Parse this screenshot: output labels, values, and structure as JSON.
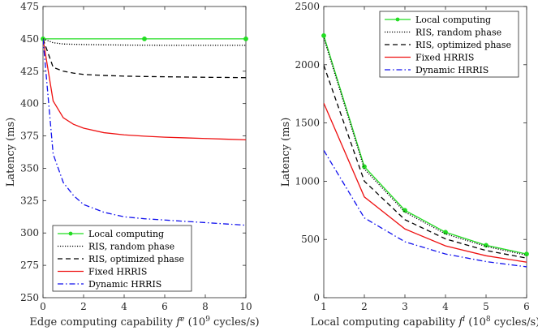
{
  "chart_data": [
    {
      "type": "line",
      "xlabel": "Edge computing capability f^e (10^9 cycles/s)",
      "xlabel_parts": {
        "prefix": "Edge computing capability ",
        "var": "f",
        "sup": "e",
        "mid": " (10",
        "exp": "9",
        "suffix": " cycles/s)"
      },
      "ylabel": "Latency (ms)",
      "xlim": [
        0,
        10
      ],
      "ylim": [
        250,
        475
      ],
      "xticks": [
        "0",
        "2",
        "4",
        "6",
        "8",
        "10"
      ],
      "yticks": [
        "250",
        "275",
        "300",
        "325",
        "350",
        "375",
        "400",
        "425",
        "450",
        "475"
      ],
      "legend_position": "bottom-left",
      "series": [
        {
          "name": "Local computing",
          "color": "#22dd22",
          "style": "solid-marker",
          "x": [
            0,
            5,
            10
          ],
          "y": [
            450,
            450,
            450
          ]
        },
        {
          "name": "RIS, random phase",
          "color": "#000000",
          "style": "dotted",
          "x": [
            0,
            0.5,
            1,
            1.5,
            2,
            3,
            4,
            5,
            6,
            7,
            8,
            9,
            10
          ],
          "y": [
            450,
            447,
            446,
            445.8,
            445.6,
            445.4,
            445.2,
            445.1,
            445,
            445,
            445,
            445,
            445
          ]
        },
        {
          "name": "RIS, optimized phase",
          "color": "#000000",
          "style": "dashed",
          "x": [
            0,
            0.5,
            1,
            1.5,
            2,
            3,
            4,
            5,
            6,
            7,
            8,
            9,
            10
          ],
          "y": [
            450,
            428,
            425,
            423.5,
            422.5,
            421.7,
            421.2,
            420.9,
            420.7,
            420.5,
            420.3,
            420.2,
            420
          ]
        },
        {
          "name": "Fixed HRRIS",
          "color": "#ee1111",
          "style": "solid",
          "x": [
            0,
            0.5,
            1,
            1.5,
            2,
            3,
            4,
            5,
            6,
            7,
            8,
            9,
            10
          ],
          "y": [
            450,
            402,
            389,
            384,
            381,
            377.5,
            375.8,
            374.8,
            374,
            373.5,
            373,
            372.5,
            372
          ]
        },
        {
          "name": "Dynamic HRRIS",
          "color": "#1111ee",
          "style": "dashdot",
          "x": [
            0,
            0.5,
            1,
            1.5,
            2,
            3,
            4,
            5,
            6,
            7,
            8,
            9,
            10
          ],
          "y": [
            450,
            361,
            339,
            329,
            322,
            316,
            312.5,
            311,
            310,
            309,
            308,
            307,
            306
          ]
        }
      ]
    },
    {
      "type": "line",
      "xlabel": "Local computing capability f^l (10^8 cycles/s)",
      "xlabel_parts": {
        "prefix": "Local computing capability ",
        "var": "f",
        "sup": "l",
        "mid": " (10",
        "exp": "8",
        "suffix": " cycles/s)"
      },
      "ylabel": "Latency (ms)",
      "xlim": [
        1,
        6
      ],
      "ylim": [
        0,
        2500
      ],
      "xticks": [
        "1",
        "2",
        "3",
        "4",
        "5",
        "6"
      ],
      "yticks": [
        "0",
        "500",
        "1000",
        "1500",
        "2000",
        "2500"
      ],
      "legend_position": "top-right",
      "series": [
        {
          "name": "Local computing",
          "color": "#22dd22",
          "style": "solid-marker",
          "x": [
            1,
            2,
            3,
            4,
            5,
            6
          ],
          "y": [
            2250,
            1125,
            750,
            562,
            450,
            375
          ]
        },
        {
          "name": "RIS, random phase",
          "color": "#000000",
          "style": "dotted",
          "x": [
            1,
            2,
            3,
            4,
            5,
            6
          ],
          "y": [
            2230,
            1105,
            735,
            548,
            440,
            365
          ]
        },
        {
          "name": "RIS, optimized phase",
          "color": "#000000",
          "style": "dashed",
          "x": [
            1,
            2,
            3,
            4,
            5,
            6
          ],
          "y": [
            1995,
            1000,
            670,
            505,
            405,
            340
          ]
        },
        {
          "name": "Fixed HRRIS",
          "color": "#ee1111",
          "style": "solid",
          "x": [
            1,
            2,
            3,
            4,
            5,
            6
          ],
          "y": [
            1670,
            865,
            590,
            445,
            360,
            305
          ]
        },
        {
          "name": "Dynamic HRRIS",
          "color": "#1111ee",
          "style": "dashdot",
          "x": [
            1,
            2,
            3,
            4,
            5,
            6
          ],
          "y": [
            1265,
            685,
            480,
            375,
            310,
            265
          ]
        }
      ]
    }
  ]
}
